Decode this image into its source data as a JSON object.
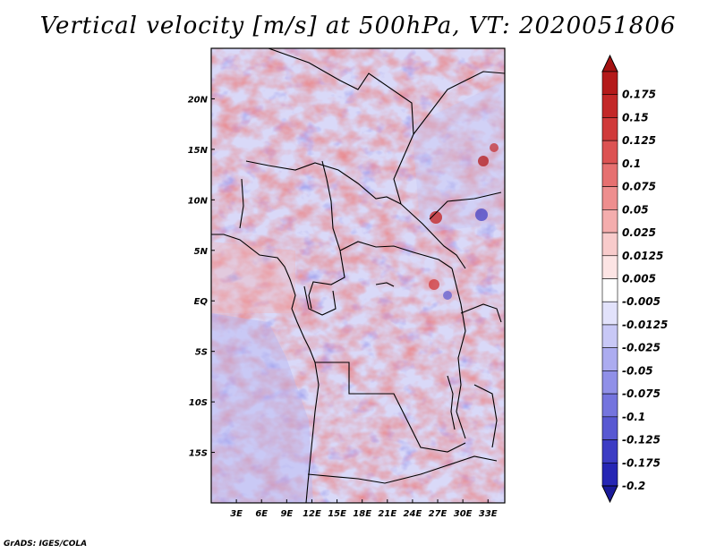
{
  "title": "Vertical velocity [m/s] at 500hPa, VT: 2020051806",
  "credit": "GrADS: IGES/COLA",
  "map": {
    "lon_range": [
      0,
      35
    ],
    "lat_range": [
      -20,
      25
    ],
    "lon_ticks": [
      {
        "value": 3,
        "label": "3E"
      },
      {
        "value": 6,
        "label": "6E"
      },
      {
        "value": 9,
        "label": "9E"
      },
      {
        "value": 12,
        "label": "12E"
      },
      {
        "value": 15,
        "label": "15E"
      },
      {
        "value": 18,
        "label": "18E"
      },
      {
        "value": 21,
        "label": "21E"
      },
      {
        "value": 24,
        "label": "24E"
      },
      {
        "value": 27,
        "label": "27E"
      },
      {
        "value": 30,
        "label": "30E"
      },
      {
        "value": 33,
        "label": "33E"
      }
    ],
    "lat_ticks": [
      {
        "value": 20,
        "label": "20N"
      },
      {
        "value": 15,
        "label": "15N"
      },
      {
        "value": 10,
        "label": "10N"
      },
      {
        "value": 5,
        "label": "5N"
      },
      {
        "value": 0,
        "label": "EQ"
      },
      {
        "value": -5,
        "label": "5S"
      },
      {
        "value": -10,
        "label": "10S"
      },
      {
        "value": -15,
        "label": "15S"
      }
    ]
  },
  "colorbar": {
    "levels": [
      {
        "label": "0.175",
        "color": "#b41a1a"
      },
      {
        "label": "0.15",
        "color": "#c32828"
      },
      {
        "label": "0.125",
        "color": "#d03a3a"
      },
      {
        "label": "0.1",
        "color": "#dc5252"
      },
      {
        "label": "0.075",
        "color": "#e67070"
      },
      {
        "label": "0.05",
        "color": "#ee8e8e"
      },
      {
        "label": "0.025",
        "color": "#f4adad"
      },
      {
        "label": "0.0125",
        "color": "#f8cbcb"
      },
      {
        "label": "0.005",
        "color": "#fce4e4"
      },
      {
        "label": "-0.005",
        "color": "#ffffff"
      },
      {
        "label": "-0.0125",
        "color": "#e2e2fb"
      },
      {
        "label": "-0.025",
        "color": "#c8c8f6"
      },
      {
        "label": "-0.05",
        "color": "#acacf0"
      },
      {
        "label": "-0.075",
        "color": "#9090e8"
      },
      {
        "label": "-0.1",
        "color": "#7474de"
      },
      {
        "label": "-0.125",
        "color": "#5858d2"
      },
      {
        "label": "-0.175",
        "color": "#3c3cc4"
      },
      {
        "label": "-0.2",
        "color": "#2626b4"
      }
    ],
    "top_color": "#a51212",
    "bottom_color": "#1a1a9a"
  },
  "colors": {
    "frame": "#000000",
    "border": "#000000",
    "ocean_tone": "#cfd0f7"
  }
}
